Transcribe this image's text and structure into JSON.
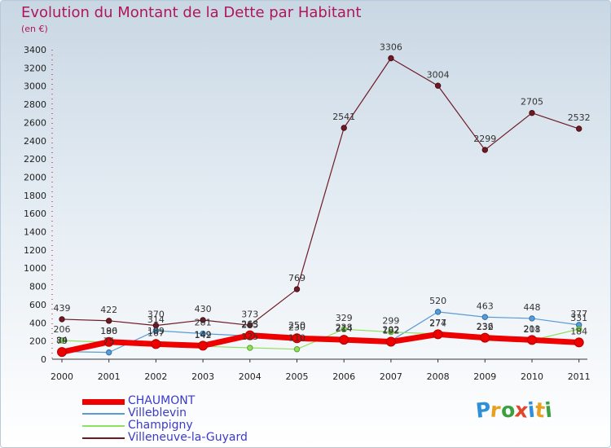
{
  "header": {
    "title": "Evolution du Montant de la Dette par Habitant",
    "subtitle": "(en €)"
  },
  "logo": {
    "text": "Proxiti"
  },
  "chart_data": {
    "type": "line",
    "x": [
      "2000",
      "2001",
      "2002",
      "2003",
      "2004",
      "2005",
      "2006",
      "2007",
      "2008",
      "2009",
      "2010",
      "2011"
    ],
    "ylim": [
      0,
      3400
    ],
    "yticks": [
      0,
      200,
      400,
      600,
      800,
      1000,
      1200,
      1400,
      1600,
      1800,
      2000,
      2200,
      2400,
      2600,
      2800,
      3000,
      3200,
      3400
    ],
    "grid": false,
    "legend": "bottom-left",
    "series": [
      {
        "name": "Villeneuve-la-Guyard",
        "color": "#6e1a24",
        "values": [
          439,
          422,
          370,
          430,
          373,
          769,
          2541,
          3306,
          3004,
          2299,
          2705,
          2532
        ]
      },
      {
        "name": "Villeblevin",
        "color": "#5b9bd5",
        "values": [
          84,
          75,
          314,
          281,
          255,
          250,
          228,
          202,
          520,
          463,
          448,
          377
        ]
      },
      {
        "name": "Champigny",
        "color": "#90e060",
        "values": [
          206,
          186,
          189,
          142,
          125,
          110,
          329,
          299,
          277,
          232,
          208,
          331
        ]
      },
      {
        "name": "CHAUMONT",
        "color": "#ee0000",
        "values": [
          79,
          190,
          167,
          149,
          263,
          230,
          214,
          192,
          274,
          236,
          211,
          184
        ]
      }
    ],
    "legend_order": [
      "CHAUMONT",
      "Villeblevin",
      "Champigny",
      "Villeneuve-la-Guyard"
    ]
  }
}
